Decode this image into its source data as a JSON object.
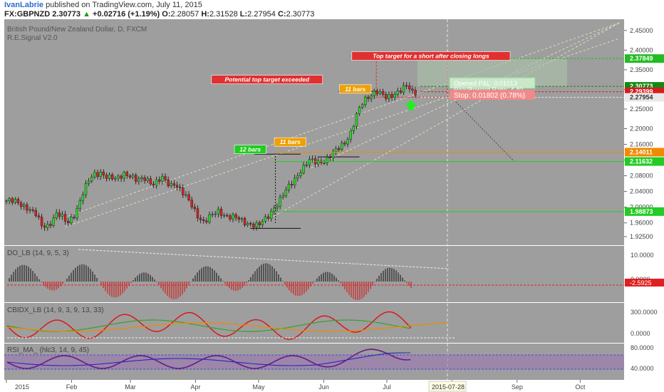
{
  "header": {
    "publisher": "IvanLabrie",
    "published_text": "published on TradingView.com, July 11, 2015",
    "symbol": "FX:GBPNZD",
    "last": "2.30773",
    "change": "+0.02716 (+1.19%)",
    "o_label": "O:",
    "o": "2.28057",
    "h_label": "H:",
    "h": "2.31528",
    "l_label": "L:",
    "l": "2.27954",
    "c_label": "C:",
    "c": "2.30773"
  },
  "colors": {
    "background": "#9e9e9e",
    "up_candle": "#2fd12f",
    "down_candle": "#d92020",
    "price_axis_bg": "#ffffff",
    "accent_green": "#22dd22",
    "accent_red": "#e02020",
    "accent_orange": "#f08a00"
  },
  "chart_data": [
    {
      "type": "candlestick",
      "pane": "price",
      "title": "British Pound/New Zealand Dollar, D, FXCM",
      "subtitle": "R.E.Signal V2.0",
      "ylim": [
        1.905,
        2.475
      ],
      "y_ticks": [
        "2.45000",
        "2.40000",
        "2.35000",
        "2.30000",
        "2.25000",
        "2.20000",
        "2.16000",
        "2.12000",
        "2.08000",
        "2.04000",
        "2.00000",
        "1.96000",
        "1.92500"
      ],
      "y_tick_values": [
        2.45,
        2.4,
        2.35,
        2.3,
        2.25,
        2.2,
        2.16,
        2.12,
        2.08,
        2.04,
        2.0,
        1.96,
        1.925
      ],
      "x_ticks": [
        "2015",
        "Feb",
        "Mar",
        "Apr",
        "May",
        "Jun",
        "Jul",
        "Aug",
        "Sep",
        "Oct"
      ],
      "x_tick_days": [
        0,
        31,
        59,
        90,
        120,
        151,
        181,
        212,
        243,
        273
      ],
      "close_path": [
        [
          0,
          2.016
        ],
        [
          5,
          2.012
        ],
        [
          10,
          2.0
        ],
        [
          14,
          1.98
        ],
        [
          17,
          1.95
        ],
        [
          20,
          1.955
        ],
        [
          24,
          1.985
        ],
        [
          27,
          1.97
        ],
        [
          29,
          1.958
        ],
        [
          33,
          1.988
        ],
        [
          36,
          2.03
        ],
        [
          39,
          2.065
        ],
        [
          42,
          2.085
        ],
        [
          45,
          2.09
        ],
        [
          48,
          2.075
        ],
        [
          52,
          2.07
        ],
        [
          56,
          2.088
        ],
        [
          59,
          2.08
        ],
        [
          62,
          2.065
        ],
        [
          66,
          2.075
        ],
        [
          70,
          2.06
        ],
        [
          74,
          2.072
        ],
        [
          78,
          2.055
        ],
        [
          80,
          2.064
        ],
        [
          84,
          2.035
        ],
        [
          88,
          2.005
        ],
        [
          91,
          1.98
        ],
        [
          94,
          1.962
        ],
        [
          97,
          1.975
        ],
        [
          101,
          1.99
        ],
        [
          105,
          1.978
        ],
        [
          109,
          1.972
        ],
        [
          113,
          1.962
        ],
        [
          117,
          1.958
        ],
        [
          120,
          1.952
        ],
        [
          124,
          1.972
        ],
        [
          127,
          1.998
        ],
        [
          130,
          2.018
        ],
        [
          134,
          2.048
        ],
        [
          137,
          2.07
        ],
        [
          140,
          2.095
        ],
        [
          144,
          2.118
        ],
        [
          148,
          2.112
        ],
        [
          152,
          2.122
        ],
        [
          155,
          2.135
        ],
        [
          158,
          2.148
        ],
        [
          161,
          2.165
        ],
        [
          164,
          2.195
        ],
        [
          167,
          2.24
        ],
        [
          170,
          2.268
        ],
        [
          173,
          2.285
        ],
        [
          176,
          2.3
        ],
        [
          178,
          2.29
        ],
        [
          181,
          2.275
        ],
        [
          184,
          2.285
        ],
        [
          187,
          2.3
        ],
        [
          190,
          2.31
        ],
        [
          192,
          2.3
        ],
        [
          194,
          2.28
        ],
        [
          196,
          2.308
        ]
      ],
      "horizontal_levels": [
        {
          "label": "2.37849",
          "value": 2.37849,
          "color": "#22bb22"
        },
        {
          "label": "2.30773",
          "value": 2.30773,
          "color": "#118a11"
        },
        {
          "label": "2.29399",
          "value": 2.29399,
          "color": "#d41c1c"
        },
        {
          "label": "2.27954",
          "value": 2.27954,
          "color": "#e8e8e8"
        },
        {
          "label": "2.14011",
          "value": 2.14011,
          "color": "#f08a00"
        },
        {
          "label": "2.11632",
          "value": 2.11632,
          "color": "#22cc22"
        },
        {
          "label": "1.98873",
          "value": 1.98873,
          "color": "#22cc22"
        }
      ],
      "annotations": [
        {
          "text": "Top target for a short after closing longs",
          "day": 202,
          "value": 2.385
        },
        {
          "text": "Potential top target exceeded",
          "day": 124,
          "value": 2.325
        },
        {
          "text": "11 bars",
          "day": 166,
          "value": 2.301
        },
        {
          "text": "11 bars",
          "day": 135,
          "value": 2.166
        },
        {
          "text": "12 bars",
          "day": 116,
          "value": 2.147
        }
      ],
      "trade_box": {
        "opened_pl": "Opened P&L: 0.01013",
        "risk_reward": "Risk/Reward Ratio: 4.40",
        "stop": "Stop: 0.01802 (0.78%)"
      },
      "date_label": "2015-07-28"
    },
    {
      "type": "histogram",
      "pane": "DO_LB",
      "title": "DO_LB (14, 9, 5, 3)",
      "y_ticks": [
        "10.0000",
        "0.0000"
      ],
      "last_value_label": "-2.5925"
    },
    {
      "type": "line",
      "pane": "CBIDX_LB",
      "title": "CBIDX_LB (14, 9, 3, 9, 13, 33)",
      "y_ticks": [
        "300.0000",
        "0.0000"
      ]
    },
    {
      "type": "line",
      "pane": "RSI_MA",
      "title": "RSI_MA_ (hlc3, 14, 9, 45)",
      "y_ticks": [
        "80.0000",
        "40.0000"
      ]
    }
  ]
}
